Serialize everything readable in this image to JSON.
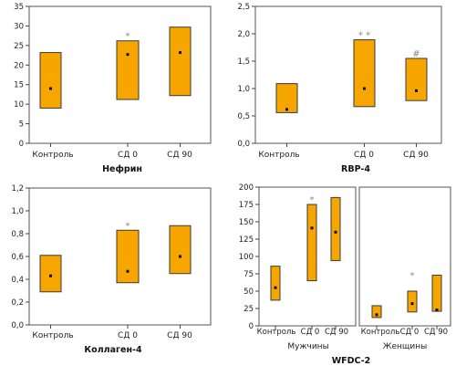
{
  "chart_data": [
    {
      "id": "nephrin",
      "type": "box",
      "title": "Нефрин",
      "categories": [
        "Контроль",
        "СД 0",
        "СД 90"
      ],
      "ylim": [
        0,
        35
      ],
      "yticks": [
        "0",
        "5",
        "10",
        "15",
        "20",
        "25",
        "30",
        "35"
      ],
      "boxes": [
        {
          "low": 9,
          "high": 23.2,
          "median": 14
        },
        {
          "low": 11.2,
          "high": 26.2,
          "median": 22.7
        },
        {
          "low": 12.2,
          "high": 29.7,
          "median": 23.2
        }
      ],
      "annotations": [
        {
          "category": "СД 0",
          "text": "*"
        }
      ]
    },
    {
      "id": "rbp4",
      "type": "box",
      "title": "RBP-4",
      "categories": [
        "Контроль",
        "СД 0",
        "СД 90"
      ],
      "ylim": [
        0,
        2.5
      ],
      "yticks": [
        "0,0",
        "0,5",
        "1,0",
        "1,5",
        "2,0",
        "2,5"
      ],
      "boxes": [
        {
          "low": 0.56,
          "high": 1.09,
          "median": 0.62
        },
        {
          "low": 0.67,
          "high": 1.89,
          "median": 1.0
        },
        {
          "low": 0.78,
          "high": 1.55,
          "median": 0.96
        }
      ],
      "annotations": [
        {
          "category": "СД 0",
          "text": "* *"
        },
        {
          "category": "СД 90",
          "text": "#"
        }
      ]
    },
    {
      "id": "collagen4",
      "type": "box",
      "title": "Коллаген-4",
      "categories": [
        "Контроль",
        "СД 0",
        "СД 90"
      ],
      "ylim": [
        0,
        1.2
      ],
      "yticks": [
        "0,0",
        "0,2",
        "0,4",
        "0,6",
        "0,8",
        "1,0",
        "1,2"
      ],
      "boxes": [
        {
          "low": 0.29,
          "high": 0.61,
          "median": 0.43
        },
        {
          "low": 0.37,
          "high": 0.83,
          "median": 0.47
        },
        {
          "low": 0.45,
          "high": 0.87,
          "median": 0.6
        }
      ],
      "annotations": [
        {
          "category": "СД 0",
          "text": "*"
        }
      ]
    },
    {
      "id": "wfdc2",
      "type": "box",
      "title": "WFDC-2",
      "ylim": [
        0,
        200
      ],
      "yticks": [
        "0",
        "25",
        "50",
        "75",
        "100",
        "125",
        "150",
        "175",
        "200"
      ],
      "groups": [
        {
          "name": "Мужчины",
          "categories": [
            "Контроль",
            "СД 0",
            "СД 90"
          ],
          "boxes": [
            {
              "low": 37,
              "high": 86,
              "median": 55
            },
            {
              "low": 65,
              "high": 175,
              "median": 141
            },
            {
              "low": 94,
              "high": 185,
              "median": 135
            }
          ],
          "annotations": [
            {
              "category": "СД 0",
              "text": "*"
            }
          ]
        },
        {
          "name": "Женщины",
          "categories": [
            "Контроль",
            "СД 0",
            "СД 90"
          ],
          "boxes": [
            {
              "low": 12,
              "high": 29,
              "median": 16
            },
            {
              "low": 20,
              "high": 50,
              "median": 32
            },
            {
              "low": 21,
              "high": 73,
              "median": 23
            }
          ],
          "annotations": [
            {
              "category": "СД 0",
              "text": "*"
            }
          ]
        }
      ]
    }
  ],
  "colors": {
    "box_fill": "#f7a600",
    "box_stroke": "#3a3a3a",
    "median": "#111111",
    "axis": "#444444",
    "grid_frame": "#555555",
    "star": "#888888"
  }
}
